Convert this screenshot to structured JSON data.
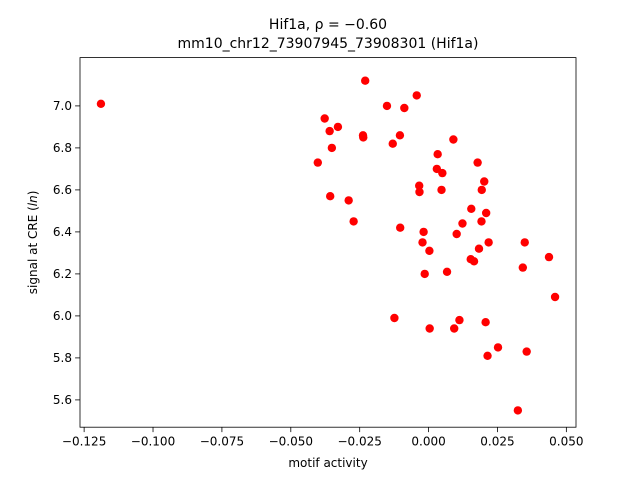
{
  "chart_data": {
    "type": "scatter",
    "title_line1_prefix": "Hif1a, ",
    "title_line1_math": "ρ = −0.60",
    "title_line2": "mm10_chr12_73907945_73908301 (Hif1a)",
    "xlabel": "motif activity",
    "ylabel_prefix": "signal at CRE (",
    "ylabel_italic": "ln",
    "ylabel_suffix": ")",
    "xlim": [
      -0.1265,
      0.0535
    ],
    "ylim": [
      5.47,
      7.23
    ],
    "xticks": [
      -0.125,
      -0.1,
      -0.075,
      -0.05,
      -0.025,
      0.0,
      0.025,
      0.05
    ],
    "xtick_labels": [
      "−0.125",
      "−0.100",
      "−0.075",
      "−0.050",
      "−0.025",
      "0.000",
      "0.025",
      "0.050"
    ],
    "yticks": [
      5.6,
      5.8,
      6.0,
      6.2,
      6.4,
      6.6,
      6.8,
      7.0
    ],
    "ytick_labels": [
      "5.6",
      "5.8",
      "6.0",
      "6.2",
      "6.4",
      "6.6",
      "6.8",
      "7.0"
    ],
    "grid": false,
    "legend": "none",
    "point_color": "#ff0000",
    "points": [
      {
        "x": -0.1189,
        "y": 7.01
      },
      {
        "x": -0.023,
        "y": 7.12
      },
      {
        "x": -0.0043,
        "y": 7.05
      },
      {
        "x": -0.0151,
        "y": 7.0
      },
      {
        "x": -0.0088,
        "y": 6.99
      },
      {
        "x": -0.0377,
        "y": 6.94
      },
      {
        "x": -0.0329,
        "y": 6.9
      },
      {
        "x": -0.0359,
        "y": 6.88
      },
      {
        "x": -0.0238,
        "y": 6.86
      },
      {
        "x": -0.0237,
        "y": 6.85
      },
      {
        "x": -0.0104,
        "y": 6.86
      },
      {
        "x": 0.009,
        "y": 6.84
      },
      {
        "x": -0.013,
        "y": 6.82
      },
      {
        "x": -0.0351,
        "y": 6.8
      },
      {
        "x": 0.0033,
        "y": 6.77
      },
      {
        "x": -0.0402,
        "y": 6.73
      },
      {
        "x": 0.0178,
        "y": 6.73
      },
      {
        "x": 0.003,
        "y": 6.7
      },
      {
        "x": 0.005,
        "y": 6.68
      },
      {
        "x": 0.0202,
        "y": 6.64
      },
      {
        "x": -0.0034,
        "y": 6.62
      },
      {
        "x": 0.0047,
        "y": 6.6
      },
      {
        "x": 0.0193,
        "y": 6.6
      },
      {
        "x": -0.0033,
        "y": 6.59
      },
      {
        "x": -0.0357,
        "y": 6.57
      },
      {
        "x": -0.029,
        "y": 6.55
      },
      {
        "x": 0.0155,
        "y": 6.51
      },
      {
        "x": 0.0209,
        "y": 6.49
      },
      {
        "x": 0.0192,
        "y": 6.45
      },
      {
        "x": -0.0272,
        "y": 6.45
      },
      {
        "x": 0.0123,
        "y": 6.44
      },
      {
        "x": -0.0103,
        "y": 6.42
      },
      {
        "x": -0.0018,
        "y": 6.4
      },
      {
        "x": 0.0102,
        "y": 6.39
      },
      {
        "x": -0.0022,
        "y": 6.35
      },
      {
        "x": 0.0218,
        "y": 6.35
      },
      {
        "x": 0.0349,
        "y": 6.35
      },
      {
        "x": 0.0183,
        "y": 6.32
      },
      {
        "x": 0.0003,
        "y": 6.31
      },
      {
        "x": 0.0437,
        "y": 6.28
      },
      {
        "x": 0.0153,
        "y": 6.27
      },
      {
        "x": 0.0165,
        "y": 6.26
      },
      {
        "x": 0.0342,
        "y": 6.23
      },
      {
        "x": 0.0067,
        "y": 6.21
      },
      {
        "x": -0.0014,
        "y": 6.2
      },
      {
        "x": 0.0459,
        "y": 6.09
      },
      {
        "x": -0.0124,
        "y": 5.99
      },
      {
        "x": 0.0112,
        "y": 5.98
      },
      {
        "x": 0.0207,
        "y": 5.97
      },
      {
        "x": 0.0004,
        "y": 5.94
      },
      {
        "x": 0.0093,
        "y": 5.94
      },
      {
        "x": 0.0252,
        "y": 5.85
      },
      {
        "x": 0.0356,
        "y": 5.83
      },
      {
        "x": 0.0214,
        "y": 5.81
      },
      {
        "x": 0.0324,
        "y": 5.55
      }
    ]
  }
}
